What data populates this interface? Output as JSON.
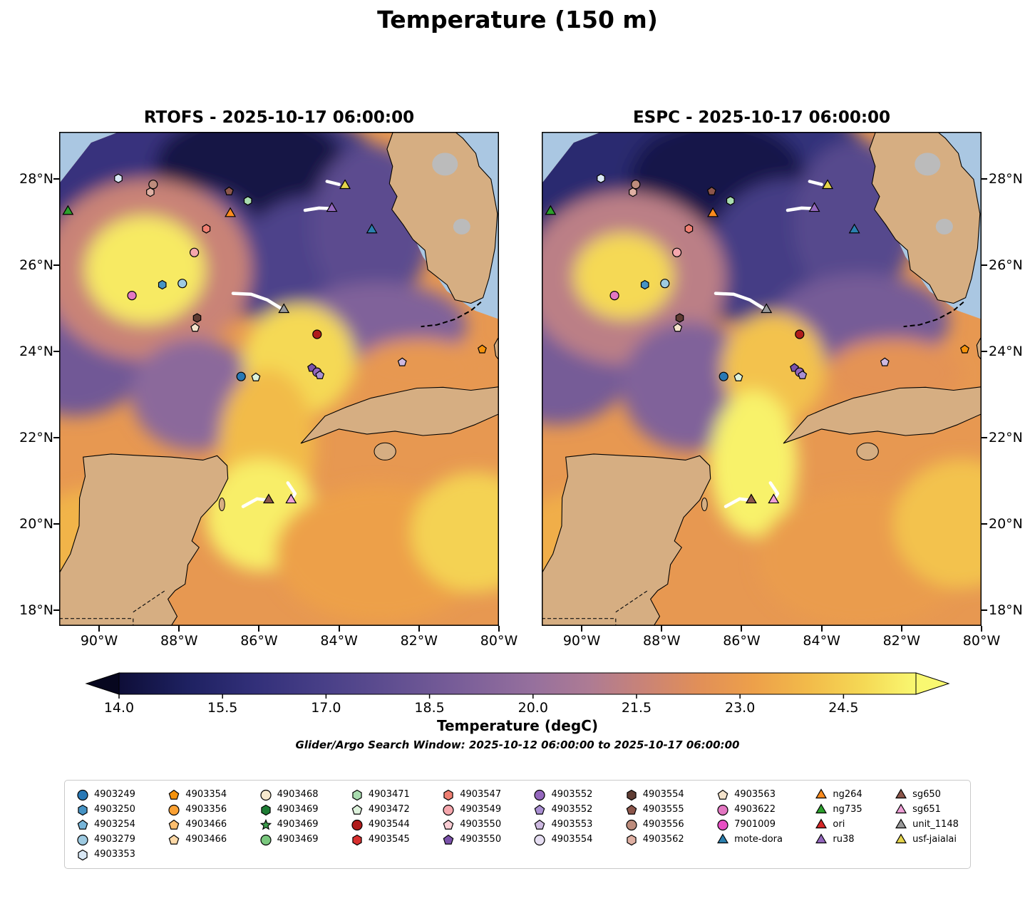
{
  "figure": {
    "title": "Temperature (150 m)"
  },
  "panels": [
    {
      "id": "rtofs",
      "title": "RTOFS - 2025-10-17 06:00:00"
    },
    {
      "id": "espc",
      "title": "ESPC - 2025-10-17 06:00:00"
    }
  ],
  "axes": {
    "lon_range": [
      -91.0,
      -80.0
    ],
    "lat_range": [
      17.63,
      29.1
    ],
    "x_ticks": [
      {
        "value": -90,
        "label": "90°W"
      },
      {
        "value": -88,
        "label": "88°W"
      },
      {
        "value": -86,
        "label": "86°W"
      },
      {
        "value": -84,
        "label": "84°W"
      },
      {
        "value": -82,
        "label": "82°W"
      },
      {
        "value": -80,
        "label": "80°W"
      }
    ],
    "y_ticks": [
      {
        "value": 18,
        "label": "18°N"
      },
      {
        "value": 20,
        "label": "20°N"
      },
      {
        "value": 22,
        "label": "22°N"
      },
      {
        "value": 24,
        "label": "24°N"
      },
      {
        "value": 26,
        "label": "26°N"
      },
      {
        "value": 28,
        "label": "28°N"
      }
    ]
  },
  "map_colors": {
    "ocean": "#aac7e2",
    "land": "#d6ae82",
    "lake_gray": "#bbbbbb",
    "track": "#ffffff"
  },
  "colorbar": {
    "label": "Temperature (degC)",
    "subtitle": "Glider/Argo Search Window: 2025-10-12 06:00:00 to 2025-10-17 06:00:00",
    "ticks": [
      {
        "value": 14.0,
        "label": "14.0"
      },
      {
        "value": 15.5,
        "label": "15.5"
      },
      {
        "value": 17.0,
        "label": "17.0"
      },
      {
        "value": 18.5,
        "label": "18.5"
      },
      {
        "value": 20.0,
        "label": "20.0"
      },
      {
        "value": 21.5,
        "label": "21.5"
      },
      {
        "value": 23.0,
        "label": "23.0"
      },
      {
        "value": 24.5,
        "label": "24.5"
      }
    ],
    "range": [
      14.0,
      25.55
    ],
    "extend": "both",
    "below_color": "#07071f",
    "above_color": "#f9f871",
    "stops": [
      {
        "t": 14.0,
        "c": "#0e0e38"
      },
      {
        "t": 15.0,
        "c": "#1e2161"
      },
      {
        "t": 16.0,
        "c": "#33307a"
      },
      {
        "t": 17.0,
        "c": "#494088"
      },
      {
        "t": 18.0,
        "c": "#614f91"
      },
      {
        "t": 19.0,
        "c": "#7b5f99"
      },
      {
        "t": 20.0,
        "c": "#96709d"
      },
      {
        "t": 20.8,
        "c": "#ad7b94"
      },
      {
        "t": 21.6,
        "c": "#c98377"
      },
      {
        "t": 22.4,
        "c": "#e18f58"
      },
      {
        "t": 23.2,
        "c": "#eda04a"
      },
      {
        "t": 24.0,
        "c": "#f2bb4a"
      },
      {
        "t": 24.8,
        "c": "#f5d955"
      },
      {
        "t": 25.55,
        "c": "#f9f871"
      }
    ]
  },
  "chart_data": {
    "type": "heatmap",
    "title": "Temperature (150 m)",
    "units": "degC",
    "panels": [
      {
        "name": "RTOFS - 2025-10-17 06:00:00",
        "base_temp": 22.8,
        "field_features": [
          {
            "lon": -87.2,
            "lat": 27.4,
            "rx": 4.8,
            "ry": 2.6,
            "t": 16.6
          },
          {
            "lon": -89.8,
            "lat": 27.9,
            "rx": 2.4,
            "ry": 1.7,
            "t": 16.2
          },
          {
            "lon": -86.2,
            "lat": 28.3,
            "rx": 2.4,
            "ry": 1.3,
            "t": 14.3
          },
          {
            "lon": -87.6,
            "lat": 26.6,
            "rx": 1.6,
            "ry": 1.2,
            "t": 17.2
          },
          {
            "lon": -84.6,
            "lat": 25.9,
            "rx": 2.0,
            "ry": 1.7,
            "t": 17.2
          },
          {
            "lon": -83.2,
            "lat": 26.9,
            "rx": 1.5,
            "ry": 1.9,
            "t": 17.8
          },
          {
            "lon": -90.6,
            "lat": 24.2,
            "rx": 2.0,
            "ry": 1.7,
            "t": 18.6
          },
          {
            "lon": -88.8,
            "lat": 25.9,
            "rx": 2.6,
            "ry": 2.1,
            "t": 21.6
          },
          {
            "lon": -88.85,
            "lat": 25.9,
            "rx": 1.5,
            "ry": 1.25,
            "t": 25.2
          },
          {
            "lon": -87.6,
            "lat": 23.0,
            "rx": 1.6,
            "ry": 1.3,
            "t": 19.6
          },
          {
            "lon": -83.0,
            "lat": 24.6,
            "rx": 2.2,
            "ry": 1.0,
            "t": 19.2
          },
          {
            "lon": -85.0,
            "lat": 23.8,
            "rx": 1.4,
            "ry": 1.3,
            "t": 24.8
          },
          {
            "lon": -85.8,
            "lat": 21.8,
            "rx": 1.2,
            "ry": 1.8,
            "t": 24.0
          },
          {
            "lon": -85.95,
            "lat": 20.2,
            "rx": 1.4,
            "ry": 1.3,
            "t": 25.3
          },
          {
            "lon": -82.0,
            "lat": 23.6,
            "rx": 1.6,
            "ry": 0.7,
            "t": 22.8
          },
          {
            "lon": -83.0,
            "lat": 19.3,
            "rx": 2.6,
            "ry": 1.6,
            "t": 23.2
          },
          {
            "lon": -80.6,
            "lat": 19.8,
            "rx": 1.6,
            "ry": 1.4,
            "t": 24.6
          },
          {
            "lon": -90.2,
            "lat": 19.4,
            "rx": 1.7,
            "ry": 1.4,
            "t": 23.8
          }
        ]
      },
      {
        "name": "ESPC - 2025-10-17 06:00:00",
        "base_temp": 22.8,
        "field_features": [
          {
            "lon": -87.6,
            "lat": 27.6,
            "rx": 5.2,
            "ry": 2.9,
            "t": 16.0
          },
          {
            "lon": -90.2,
            "lat": 28.4,
            "rx": 2.6,
            "ry": 1.5,
            "t": 15.6
          },
          {
            "lon": -86.6,
            "lat": 28.0,
            "rx": 2.2,
            "ry": 1.4,
            "t": 14.4
          },
          {
            "lon": -84.8,
            "lat": 26.1,
            "rx": 2.1,
            "ry": 1.9,
            "t": 16.8
          },
          {
            "lon": -83.2,
            "lat": 27.0,
            "rx": 1.5,
            "ry": 1.9,
            "t": 17.6
          },
          {
            "lon": -90.6,
            "lat": 24.0,
            "rx": 2.0,
            "ry": 1.7,
            "t": 18.8
          },
          {
            "lon": -88.9,
            "lat": 25.7,
            "rx": 2.5,
            "ry": 2.0,
            "t": 21.2
          },
          {
            "lon": -88.95,
            "lat": 25.75,
            "rx": 1.25,
            "ry": 1.0,
            "t": 24.8
          },
          {
            "lon": -87.3,
            "lat": 23.2,
            "rx": 1.7,
            "ry": 1.5,
            "t": 19.2
          },
          {
            "lon": -83.0,
            "lat": 24.7,
            "rx": 2.2,
            "ry": 1.1,
            "t": 18.8
          },
          {
            "lon": -85.2,
            "lat": 23.6,
            "rx": 1.3,
            "ry": 1.3,
            "t": 24.2
          },
          {
            "lon": -85.7,
            "lat": 21.4,
            "rx": 1.1,
            "ry": 1.7,
            "t": 25.4
          },
          {
            "lon": -82.2,
            "lat": 23.5,
            "rx": 1.7,
            "ry": 0.8,
            "t": 22.6
          },
          {
            "lon": -83.0,
            "lat": 19.2,
            "rx": 2.6,
            "ry": 1.6,
            "t": 23.0
          },
          {
            "lon": -80.5,
            "lat": 20.0,
            "rx": 1.7,
            "ry": 1.5,
            "t": 24.2
          },
          {
            "lon": -90.2,
            "lat": 19.3,
            "rx": 1.7,
            "ry": 1.4,
            "t": 23.6
          }
        ]
      }
    ],
    "observations": [
      {
        "id": "4903353",
        "shape": "hexagon",
        "color": "#d9e8f5",
        "lon": -89.52,
        "lat": 28.02
      },
      {
        "id": "4903556",
        "shape": "circle",
        "color": "#bd8c7c",
        "lon": -88.65,
        "lat": 27.88
      },
      {
        "id": "4903562",
        "shape": "hexagon",
        "color": "#dfb0a3",
        "lon": -88.72,
        "lat": 27.7
      },
      {
        "id": "4903555",
        "shape": "pentagon",
        "color": "#8c564b",
        "lon": -86.75,
        "lat": 27.72
      },
      {
        "id": "4903471",
        "shape": "hexagon",
        "color": "#a9dcaf",
        "lon": -86.28,
        "lat": 27.5
      },
      {
        "id": "ng264",
        "shape": "triangle",
        "color": "#fb8b1e",
        "lon": -86.72,
        "lat": 27.2
      },
      {
        "id": "ng735",
        "shape": "triangle",
        "color": "#2ca02c",
        "lon": -90.78,
        "lat": 27.25
      },
      {
        "id": "usf-jaialai",
        "shape": "triangle",
        "color": "#e5d44b",
        "lon": -83.85,
        "lat": 27.85
      },
      {
        "id": "ru38",
        "shape": "triangle",
        "color": "#9467bd",
        "lon": -84.18,
        "lat": 27.32
      },
      {
        "id": "mote-dora",
        "shape": "triangle",
        "color": "#2b7fae",
        "lon": -83.18,
        "lat": 26.82
      },
      {
        "id": "4903547",
        "shape": "hexagon",
        "color": "#ef7f72",
        "lon": -87.32,
        "lat": 26.85
      },
      {
        "id": "4903549",
        "shape": "circle",
        "color": "#f5a7ad",
        "lon": -87.62,
        "lat": 26.3
      },
      {
        "id": "4903622",
        "shape": "circle",
        "color": "#e377c2",
        "lon": -89.18,
        "lat": 25.3
      },
      {
        "id": "4903250",
        "shape": "hexagon",
        "color": "#4693c4",
        "lon": -88.42,
        "lat": 25.55
      },
      {
        "id": "4903279",
        "shape": "circle",
        "color": "#9ecae1",
        "lon": -87.92,
        "lat": 25.58
      },
      {
        "id": "4903554",
        "shape": "hexagon",
        "color": "#5f3c33",
        "lon": -87.55,
        "lat": 24.78
      },
      {
        "id": "4903563",
        "shape": "pentagon",
        "color": "#f4e3cb",
        "lon": -87.6,
        "lat": 24.55
      },
      {
        "id": "unit_1148",
        "shape": "triangle",
        "color": "#999999",
        "lon": -85.38,
        "lat": 24.97
      },
      {
        "id": "4903544",
        "shape": "circle",
        "color": "#b01c1c",
        "lon": -84.55,
        "lat": 24.4
      },
      {
        "id": "4903249",
        "shape": "circle",
        "color": "#2878b5",
        "lon": -86.45,
        "lat": 23.42
      },
      {
        "id": "4903472",
        "shape": "pentagon",
        "color": "#ddf2dc",
        "lon": -86.08,
        "lat": 23.4
      },
      {
        "id": "4903550",
        "shape": "pentagon",
        "color": "#7b52ab",
        "lon": -84.68,
        "lat": 23.62
      },
      {
        "id": "4903552",
        "shape": "circle",
        "color": "#9467bd",
        "lon": -84.55,
        "lat": 23.52
      },
      {
        "id": "4903552",
        "shape": "pentagon",
        "color": "#a98fd2",
        "lon": -84.48,
        "lat": 23.45
      },
      {
        "id": "4903553",
        "shape": "pentagon",
        "color": "#cdb9e0",
        "lon": -82.42,
        "lat": 23.75
      },
      {
        "id": "4903354",
        "shape": "pentagon",
        "color": "#f5920b",
        "lon": -80.42,
        "lat": 24.05
      },
      {
        "id": "sg650",
        "shape": "triangle",
        "color": "#8c564b",
        "lon": -85.76,
        "lat": 20.55
      },
      {
        "id": "sg651",
        "shape": "triangle",
        "color": "#ee9fd6",
        "lon": -85.2,
        "lat": 20.55
      }
    ],
    "tracks": [
      {
        "name": "unit_1148",
        "color": "#ffffff",
        "points": [
          [
            -86.65,
            25.35
          ],
          [
            -86.2,
            25.33
          ],
          [
            -85.8,
            25.2
          ],
          [
            -85.45,
            25.0
          ]
        ]
      },
      {
        "name": "ru38",
        "color": "#ffffff",
        "points": [
          [
            -84.85,
            27.28
          ],
          [
            -84.5,
            27.33
          ],
          [
            -84.25,
            27.32
          ]
        ]
      },
      {
        "name": "usf-jaialai",
        "color": "#ffffff",
        "points": [
          [
            -84.3,
            27.95
          ],
          [
            -84.0,
            27.88
          ]
        ]
      },
      {
        "name": "sg650",
        "color": "#ffffff",
        "points": [
          [
            -86.4,
            20.4
          ],
          [
            -86.05,
            20.58
          ],
          [
            -85.8,
            20.55
          ]
        ]
      },
      {
        "name": "sg651",
        "color": "#ffffff",
        "points": [
          [
            -85.28,
            20.95
          ],
          [
            -85.1,
            20.7
          ],
          [
            -85.22,
            20.52
          ]
        ]
      }
    ]
  },
  "legend": {
    "columns": [
      [
        {
          "label": "4903249",
          "shape": "circle",
          "color": "#2878b5"
        },
        {
          "label": "4903250",
          "shape": "hexagon",
          "color": "#4693c4"
        },
        {
          "label": "4903254",
          "shape": "pentagon",
          "color": "#77b5d9"
        },
        {
          "label": "4903279",
          "shape": "circle",
          "color": "#9ecae1"
        },
        {
          "label": "4903353",
          "shape": "hexagon",
          "color": "#d9e8f5"
        }
      ],
      [
        {
          "label": "4903354",
          "shape": "pentagon",
          "color": "#f5920b"
        },
        {
          "label": "4903356",
          "shape": "circle",
          "color": "#fba133"
        },
        {
          "label": "4903466",
          "shape": "pentagon",
          "color": "#fdbe6e"
        },
        {
          "label": "4903466",
          "shape": "pentagon",
          "color": "#fdd9a7"
        }
      ],
      [
        {
          "label": "4903468",
          "shape": "circle",
          "color": "#f6e8cd"
        },
        {
          "label": "4903469",
          "shape": "hexagon",
          "color": "#1e7d35"
        },
        {
          "label": "4903469",
          "shape": "star",
          "color": "#3f9e4d"
        },
        {
          "label": "4903469",
          "shape": "circle",
          "color": "#7ac87e"
        }
      ],
      [
        {
          "label": "4903471",
          "shape": "hexagon",
          "color": "#a9dcaf"
        },
        {
          "label": "4903472",
          "shape": "pentagon",
          "color": "#ddf2dc"
        },
        {
          "label": "4903544",
          "shape": "circle",
          "color": "#b01c1c"
        },
        {
          "label": "4903545",
          "shape": "hexagon",
          "color": "#d8302f"
        }
      ],
      [
        {
          "label": "4903547",
          "shape": "hexagon",
          "color": "#ef7f72"
        },
        {
          "label": "4903549",
          "shape": "circle",
          "color": "#f5a7ad"
        },
        {
          "label": "4903550",
          "shape": "pentagon",
          "color": "#f9cdd4"
        },
        {
          "label": "4903550",
          "shape": "pentagon",
          "color": "#7b52ab"
        }
      ],
      [
        {
          "label": "4903552",
          "shape": "circle",
          "color": "#9467bd"
        },
        {
          "label": "4903552",
          "shape": "pentagon",
          "color": "#a98fd2"
        },
        {
          "label": "4903553",
          "shape": "pentagon",
          "color": "#cdb9e0"
        },
        {
          "label": "4903554",
          "shape": "circle",
          "color": "#e6def2"
        }
      ],
      [
        {
          "label": "4903554",
          "shape": "hexagon",
          "color": "#5f3c33"
        },
        {
          "label": "4903555",
          "shape": "pentagon",
          "color": "#8c564b"
        },
        {
          "label": "4903556",
          "shape": "circle",
          "color": "#bd8c7c"
        },
        {
          "label": "4903562",
          "shape": "hexagon",
          "color": "#dfb0a3"
        }
      ],
      [
        {
          "label": "4903563",
          "shape": "pentagon",
          "color": "#f4e3cb"
        },
        {
          "label": "4903622",
          "shape": "circle",
          "color": "#e377c2"
        },
        {
          "label": "7901009",
          "shape": "circle",
          "color": "#e84fc4"
        },
        {
          "label": "mote-dora",
          "shape": "triangle",
          "color": "#2b7fae"
        }
      ],
      [
        {
          "label": "ng264",
          "shape": "triangle",
          "color": "#fb8b1e"
        },
        {
          "label": "ng735",
          "shape": "triangle",
          "color": "#2ca02c"
        },
        {
          "label": "ori",
          "shape": "triangle",
          "color": "#d62728"
        },
        {
          "label": "ru38",
          "shape": "triangle",
          "color": "#9467bd"
        }
      ],
      [
        {
          "label": "sg650",
          "shape": "triangle",
          "color": "#8c564b"
        },
        {
          "label": "sg651",
          "shape": "triangle",
          "color": "#ee9fd6"
        },
        {
          "label": "unit_1148",
          "shape": "triangle",
          "color": "#999999"
        },
        {
          "label": "usf-jaialai",
          "shape": "triangle",
          "color": "#e5d44b"
        }
      ]
    ]
  }
}
